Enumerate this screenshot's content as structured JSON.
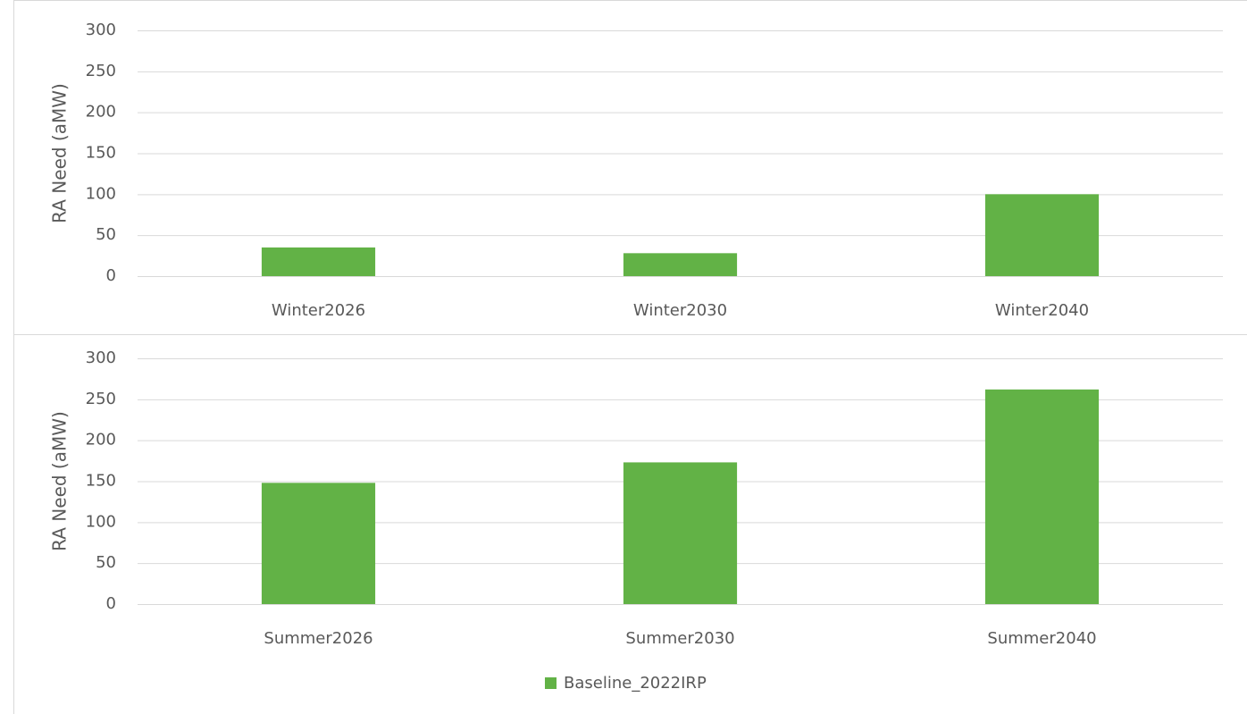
{
  "chart_data": [
    {
      "type": "bar",
      "ylabel": "RA Need (aMW)",
      "categories": [
        "Winter2026",
        "Winter2030",
        "Winter2040"
      ],
      "values": [
        35,
        28,
        100
      ],
      "color": "#62b246",
      "ylim": [
        0,
        300
      ],
      "yticks": [
        0,
        50,
        100,
        150,
        200,
        250,
        300
      ],
      "grid": true
    },
    {
      "type": "bar",
      "ylabel": "RA Need (aMW)",
      "categories": [
        "Summer2026",
        "Summer2030",
        "Summer2040"
      ],
      "series": [
        {
          "name": "Baseline_2022IRP",
          "color": "#62b246",
          "values": [
            148,
            173,
            262
          ]
        }
      ],
      "ylim": [
        0,
        300
      ],
      "yticks": [
        0,
        50,
        100,
        150,
        200,
        250,
        300
      ],
      "grid": true,
      "legend": "bottom"
    }
  ]
}
